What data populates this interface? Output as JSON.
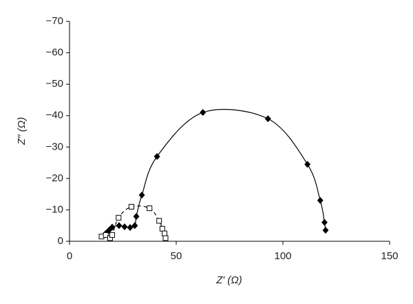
{
  "chart_data": {
    "type": "scatter",
    "x_label": "Z′ (Ω)",
    "y_label": "Z′′ (Ω)",
    "xlim": [
      0,
      150
    ],
    "xticks": [
      0,
      50,
      100,
      150
    ],
    "ylim": [
      0,
      -70
    ],
    "yticks": [
      0,
      {
        "value": -10,
        "label": "−10"
      },
      {
        "value": -20,
        "label": "−20"
      },
      {
        "value": -30,
        "label": "−30"
      },
      {
        "value": -40,
        "label": "−40"
      },
      {
        "value": -50,
        "label": "−50"
      },
      {
        "value": -60,
        "label": "−60"
      },
      {
        "value": -70,
        "label": "−70"
      }
    ],
    "series": [
      {
        "color": "#000000",
        "marker": "diamond",
        "line": "solid",
        "x": [
          17,
          18.5,
          20,
          23.2,
          25.8,
          28.4,
          30.6,
          31.3,
          33.9,
          41,
          62.5,
          93,
          111.5,
          117.5,
          119.5,
          120
        ],
        "values": [
          -2.5,
          -3.5,
          -4.5,
          -5,
          -4.6,
          -4.4,
          -5,
          -7.9,
          -14.7,
          -27,
          -41,
          -39,
          -24.5,
          -13,
          -6,
          -3.5
        ]
      },
      {
        "color": "#000000",
        "marker": "square",
        "line": "dashed",
        "x": [
          15,
          17,
          19,
          20,
          23,
          29,
          37.5,
          42,
          43.5,
          44.5,
          45
        ],
        "values": [
          -1.5,
          -2,
          -1,
          -2,
          -7.5,
          -11,
          -10.5,
          -6.5,
          -4,
          -2.5,
          -1
        ]
      }
    ]
  }
}
